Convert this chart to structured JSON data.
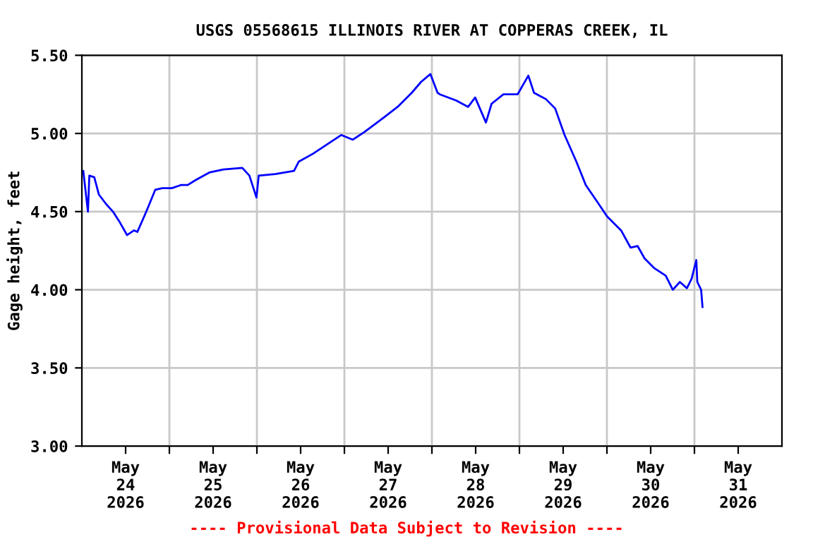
{
  "chart_data": {
    "type": "line",
    "title": "USGS 05568615 ILLINOIS RIVER AT COPPERAS CREEK, IL",
    "ylabel": "Gage height, feet",
    "annotations": [
      "---- Provisional Data Subject to Revision ----"
    ],
    "xlim": [
      "2026-05-24T00:00",
      "2026-06-01T00:00"
    ],
    "xticks": [
      {
        "value": "2026-05-24T12:00",
        "label": "May\n24\n2026"
      },
      {
        "value": "2026-05-25T12:00",
        "label": "May\n25\n2026"
      },
      {
        "value": "2026-05-26T12:00",
        "label": "May\n26\n2026"
      },
      {
        "value": "2026-05-27T12:00",
        "label": "May\n27\n2026"
      },
      {
        "value": "2026-05-28T12:00",
        "label": "May\n28\n2026"
      },
      {
        "value": "2026-05-29T12:00",
        "label": "May\n29\n2026"
      },
      {
        "value": "2026-05-30T12:00",
        "label": "May\n30\n2026"
      },
      {
        "value": "2026-05-31T12:00",
        "label": "May\n31\n2026"
      },
      {
        "value": "2026-05-25T00:00",
        "label": null
      },
      {
        "value": "2026-05-26T00:00",
        "label": null
      },
      {
        "value": "2026-05-27T00:00",
        "label": null
      },
      {
        "value": "2026-05-28T00:00",
        "label": null
      },
      {
        "value": "2026-05-29T00:00",
        "label": null
      },
      {
        "value": "2026-05-30T00:00",
        "label": null
      },
      {
        "value": "2026-05-31T00:00",
        "label": null
      }
    ],
    "ylim": [
      3.0,
      5.5
    ],
    "yticks": [
      {
        "value": 3.0,
        "label": "3.00"
      },
      {
        "value": 3.5,
        "label": "3.50"
      },
      {
        "value": 4.0,
        "label": "4.00"
      },
      {
        "value": 4.5,
        "label": "4.50"
      },
      {
        "value": 5.0,
        "label": "5.00"
      },
      {
        "value": 5.5,
        "label": "5.50"
      }
    ],
    "grid": true,
    "legend": false,
    "marker": "none",
    "line_style": "solid",
    "series": [
      {
        "color": "#0000ff",
        "x": [
          "2026-05-24T00:23",
          "2026-05-24T01:40",
          "2026-05-24T02:03",
          "2026-05-24T03:24",
          "2026-05-24T04:39",
          "2026-05-24T06:35",
          "2026-05-24T08:31",
          "2026-05-24T10:27",
          "2026-05-24T12:23",
          "2026-05-24T14:19",
          "2026-05-24T15:13",
          "2026-05-24T16:55",
          "2026-05-24T18:12",
          "2026-05-24T20:08",
          "2026-05-24T22:04",
          "2026-05-25T00:39",
          "2026-05-25T03:13",
          "2026-05-25T05:02",
          "2026-05-25T07:05",
          "2026-05-25T10:57",
          "2026-05-25T14:49",
          "2026-05-25T20:00",
          "2026-05-25T21:57",
          "2026-05-25T23:53",
          "2026-05-26T00:30",
          "2026-05-26T05:02",
          "2026-05-26T10:11",
          "2026-05-26T11:30",
          "2026-05-26T15:22",
          "2026-05-26T19:15",
          "2026-05-26T23:07",
          "2026-05-27T02:19",
          "2026-05-27T05:32",
          "2026-05-27T10:43",
          "2026-05-27T14:36",
          "2026-05-27T18:28",
          "2026-05-27T21:02",
          "2026-05-27T23:36",
          "2026-05-28T01:33",
          "2026-05-28T02:12",
          "2026-05-28T06:42",
          "2026-05-28T09:56",
          "2026-05-28T11:52",
          "2026-05-28T14:49",
          "2026-05-28T16:22",
          "2026-05-28T19:37",
          "2026-05-28T23:30",
          "2026-05-29T02:27",
          "2026-05-29T04:00",
          "2026-05-29T07:15",
          "2026-05-29T09:48",
          "2026-05-29T12:23",
          "2026-05-29T15:37",
          "2026-05-29T18:12",
          "2026-05-29T21:25",
          "2026-05-30T00:01",
          "2026-05-30T03:53",
          "2026-05-30T06:28",
          "2026-05-30T08:24",
          "2026-05-30T10:20",
          "2026-05-30T12:53",
          "2026-05-30T16:08",
          "2026-05-30T18:04",
          "2026-05-30T20:00",
          "2026-05-30T21:56",
          "2026-05-30T23:13",
          "2026-05-31T00:31",
          "2026-05-31T00:47",
          "2026-05-31T01:50",
          "2026-05-31T02:13"
        ],
        "values": [
          4.76,
          4.5,
          4.73,
          4.72,
          4.61,
          4.55,
          4.5,
          4.43,
          4.35,
          4.38,
          4.37,
          4.46,
          4.53,
          4.64,
          4.65,
          4.65,
          4.67,
          4.67,
          4.7,
          4.75,
          4.77,
          4.78,
          4.73,
          4.59,
          4.73,
          4.74,
          4.76,
          4.82,
          4.87,
          4.93,
          4.99,
          4.96,
          5.01,
          5.1,
          5.17,
          5.26,
          5.33,
          5.38,
          5.26,
          5.25,
          5.21,
          5.17,
          5.23,
          5.07,
          5.19,
          5.25,
          5.25,
          5.37,
          5.26,
          5.22,
          5.16,
          4.99,
          4.82,
          4.67,
          4.56,
          4.47,
          4.38,
          4.27,
          4.28,
          4.2,
          4.14,
          4.09,
          4.0,
          4.05,
          4.01,
          4.07,
          4.19,
          4.05,
          4.0,
          3.89
        ]
      }
    ]
  }
}
